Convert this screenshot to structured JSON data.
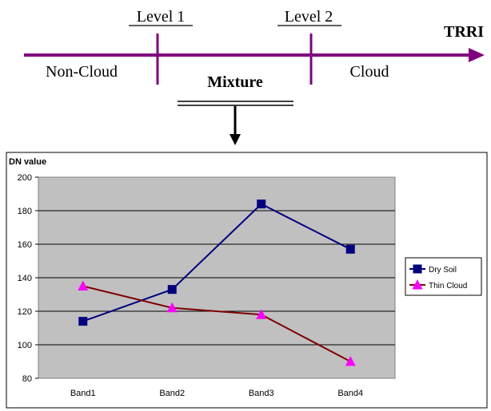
{
  "scale": {
    "arrow_label": "TRRI",
    "level1_label": "Level 1",
    "level2_label": "Level 2",
    "left_zone_label": "Non-Cloud",
    "middle_zone_label": "Mixture",
    "right_zone_label": "Cloud",
    "arrow_color": "#800080"
  },
  "chart_data": {
    "type": "line",
    "ylabel": "DN value",
    "categories": [
      "Band1",
      "Band2",
      "Band3",
      "Band4"
    ],
    "ylim": [
      80,
      200
    ],
    "yticks": [
      80,
      100,
      120,
      140,
      160,
      180,
      200
    ],
    "grid": true,
    "plot_background": "#c0c0c0",
    "legend_position": "right",
    "series": [
      {
        "name": "Dry Soil",
        "values": [
          114,
          133,
          184,
          157
        ],
        "line_color": "#000080",
        "marker": "square",
        "marker_color": "#000080"
      },
      {
        "name": "Thin Cloud",
        "values": [
          135,
          122,
          118,
          90
        ],
        "line_color": "#800000",
        "marker": "triangle",
        "marker_color": "#ff00ff"
      }
    ]
  }
}
